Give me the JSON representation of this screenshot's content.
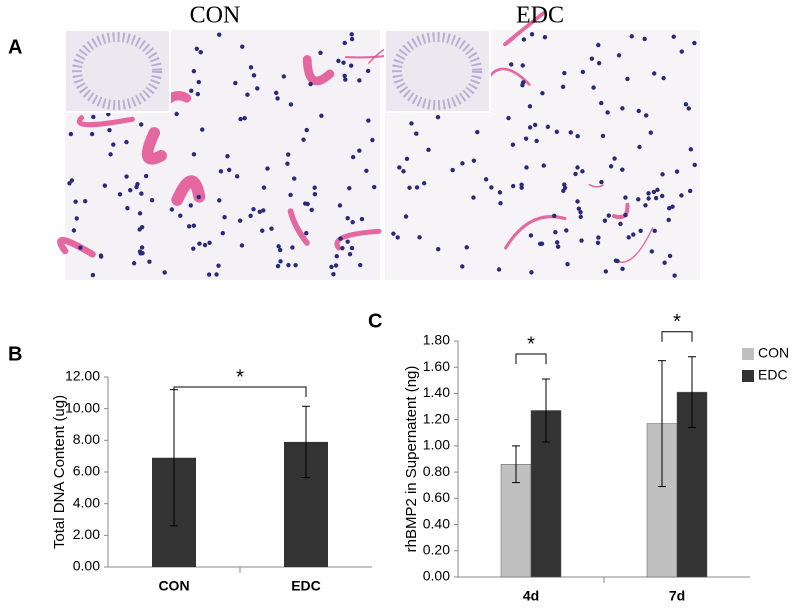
{
  "panels": {
    "a": "A",
    "b": "B",
    "c": "C"
  },
  "images": [
    {
      "title": "CON"
    },
    {
      "title": "EDC"
    }
  ],
  "chart_data": [
    {
      "type": "bar",
      "y_label": "Total DNA Content (ug)",
      "categories": [
        "CON",
        "EDC"
      ],
      "values": [
        6.9,
        7.9
      ],
      "errors": [
        4.3,
        2.25
      ],
      "color": "#333333",
      "ylim": [
        0,
        12
      ],
      "yticks": [
        {
          "value": 0,
          "label": "0.00"
        },
        {
          "value": 2,
          "label": "2.00"
        },
        {
          "value": 4,
          "label": "4.00"
        },
        {
          "value": 6,
          "label": "6.00"
        },
        {
          "value": 8,
          "label": "8.00"
        },
        {
          "value": 10,
          "label": "10.00"
        },
        {
          "value": 12,
          "label": "12.00"
        }
      ],
      "annotations": [
        "*"
      ]
    },
    {
      "type": "grouped_bar",
      "y_label": "rhBMP2 in Supernatent (ng)",
      "categories": [
        "4d",
        "7d"
      ],
      "series": [
        {
          "name": "CON",
          "color": "#c0c0c0",
          "values": [
            0.86,
            1.17
          ],
          "errors": [
            0.14,
            0.48
          ]
        },
        {
          "name": "EDC",
          "color": "#333333",
          "values": [
            1.27,
            1.41
          ],
          "errors": [
            0.24,
            0.27
          ]
        }
      ],
      "ylim": [
        0,
        1.8
      ],
      "yticks": [
        {
          "value": 0,
          "label": "0.00"
        },
        {
          "value": 0.2,
          "label": "0.20"
        },
        {
          "value": 0.4,
          "label": "0.40"
        },
        {
          "value": 0.6,
          "label": "0.60"
        },
        {
          "value": 0.8,
          "label": "0.80"
        },
        {
          "value": 1,
          "label": "1.00"
        },
        {
          "value": 1.2,
          "label": "1.20"
        },
        {
          "value": 1.4,
          "label": "1.40"
        },
        {
          "value": 1.6,
          "label": "1.60"
        },
        {
          "value": 1.8,
          "label": "1.80"
        }
      ],
      "legend": "right",
      "annotations": [
        "*",
        "*"
      ]
    }
  ]
}
